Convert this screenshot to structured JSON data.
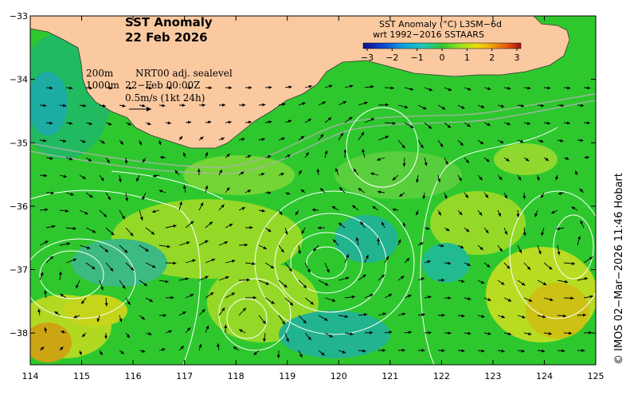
{
  "map": {
    "title_line1": "SST Anomaly",
    "title_line2": "22 Feb 2026",
    "lon_ticks": [
      "114",
      "115",
      "116",
      "117",
      "118",
      "119",
      "120",
      "121",
      "122",
      "123",
      "124",
      "125"
    ],
    "lat_ticks": [
      "−33",
      "−34",
      "−35",
      "−36",
      "−37",
      "−38"
    ],
    "lon_range": [
      114,
      125
    ],
    "lat_range": [
      -38.5,
      -33
    ],
    "land_color": "#fbc9a0",
    "ocean_base_color": "#2ec82e"
  },
  "legend": {
    "line1": "SST Anomaly (°C) L3SM−6d",
    "line2": "wrt 1992−2016 SSTAARS",
    "ticks": [
      "−3",
      "−2",
      "−1",
      "0",
      "1",
      "2",
      "3"
    ],
    "colors": [
      "#10108a",
      "#1040d0",
      "#10a0e0",
      "#20c8c0",
      "#30c830",
      "#a0e020",
      "#e8e010",
      "#f0a010",
      "#e05010",
      "#a01010"
    ]
  },
  "info": {
    "contour_line1": "200m",
    "contour_line2": "1000m",
    "source_line1": "NRT00 adj. sealevel",
    "source_line2": "22−Feb 00:00Z",
    "vector_scale": "0.5m/s (1kt 24h)"
  },
  "credit": "© IMOS 02−Mar−2026 11:46 Hobart"
}
